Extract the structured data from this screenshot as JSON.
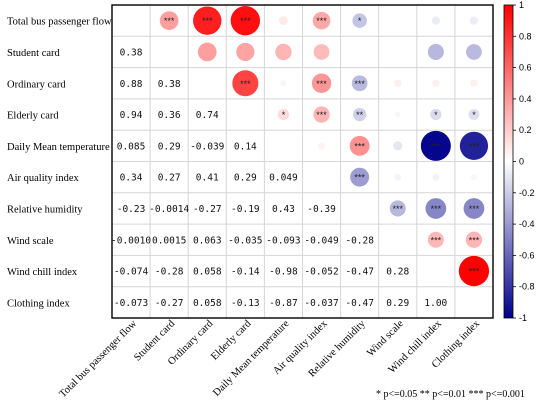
{
  "chart_data": {
    "type": "heatmap",
    "variables": [
      "Total bus passenger flow",
      "Student card",
      "Ordinary card",
      "Elderly card",
      "Daily Mean temperature",
      "Air quality index",
      "Relative humidity",
      "Wind scale",
      "Wind chill index",
      "Clothing index"
    ],
    "lower_triangle_labels": [
      [],
      [
        "0.38"
      ],
      [
        "0.88",
        "0.38"
      ],
      [
        "0.94",
        "0.36",
        "0.74"
      ],
      [
        "0.085",
        "0.29",
        "-0.039",
        "0.14"
      ],
      [
        "0.34",
        "0.27",
        "0.41",
        "0.29",
        "0.049"
      ],
      [
        "-0.23",
        "-0.0014",
        "-0.27",
        "-0.19",
        "0.43",
        "-0.39"
      ],
      [
        "-0.0010",
        "0.0015",
        "0.063",
        "-0.035",
        "-0.093",
        "-0.049",
        "-0.28"
      ],
      [
        "-0.074",
        "-0.28",
        "0.058",
        "-0.14",
        "-0.98",
        "-0.052",
        "-0.47",
        "0.28"
      ],
      [
        "-0.073",
        "-0.27",
        "0.058",
        "-0.13",
        "-0.87",
        "-0.037",
        "-0.47",
        "0.29",
        "1.00"
      ]
    ],
    "upper_triangle_stars": [
      [
        "",
        "***",
        "***",
        "***",
        "",
        "***",
        "*",
        "",
        "",
        ""
      ],
      [
        "",
        "",
        "",
        "",
        "",
        "",
        "",
        "",
        "",
        ""
      ],
      [
        "",
        "",
        "",
        "***",
        "",
        "***",
        "***",
        "",
        "",
        ""
      ],
      [
        "",
        "",
        "",
        "",
        "*",
        "***",
        "**",
        "",
        "*",
        "*"
      ],
      [
        "",
        "",
        "",
        "",
        "",
        "",
        "***",
        "",
        "***",
        "***"
      ],
      [
        "",
        "",
        "",
        "",
        "",
        "",
        "***",
        "",
        "",
        ""
      ],
      [
        "",
        "",
        "",
        "",
        "",
        "",
        "",
        "***",
        "***",
        "***"
      ],
      [
        "",
        "",
        "",
        "",
        "",
        "",
        "",
        "",
        "***",
        "***"
      ],
      [
        "",
        "",
        "",
        "",
        "",
        "",
        "",
        "",
        "",
        "***"
      ],
      [
        "",
        "",
        "",
        "",
        "",
        "",
        "",
        "",
        "",
        ""
      ]
    ],
    "colorbar": {
      "min": -1,
      "max": 1,
      "ticks": [
        "1",
        "0.8",
        "0.6",
        "0.4",
        "0.2",
        "0",
        "-0.2",
        "-0.4",
        "-0.6",
        "-0.8",
        "-1"
      ],
      "colors": {
        "negative": "#00008b",
        "zero": "#ffffff",
        "positive": "#ff0000"
      }
    },
    "legend": "* p<=0.05  ** p<=0.01  *** p<=0.001"
  }
}
